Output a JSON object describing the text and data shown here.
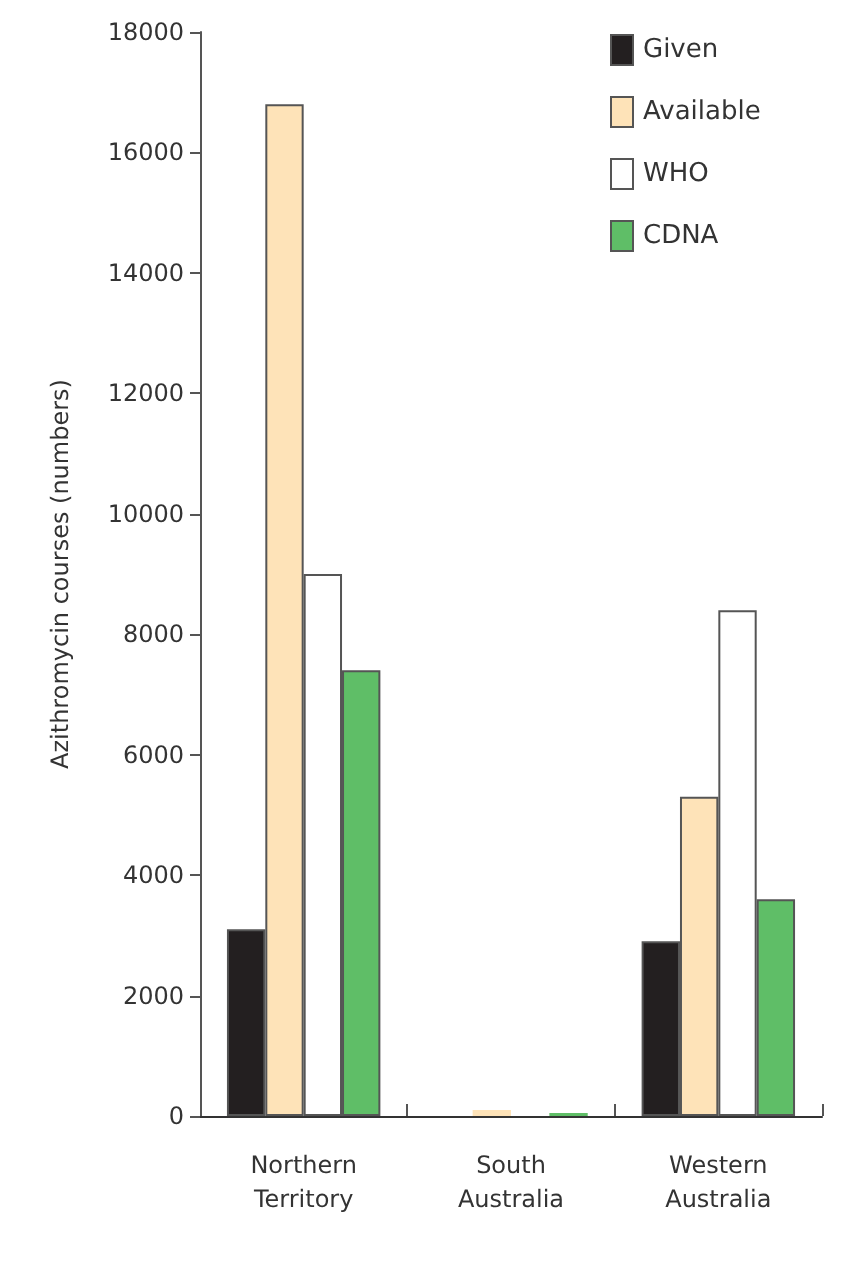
{
  "chart_data": {
    "type": "bar",
    "ylabel": "Azithromycin courses (numbers)",
    "categories": [
      "Northern\nTerritory",
      "South\nAustralia",
      "Western\nAustralia"
    ],
    "series": [
      {
        "name": "Given",
        "color": "#231f20",
        "values": [
          3100,
          null,
          2900
        ]
      },
      {
        "name": "Available",
        "color": "#fee3b8",
        "values": [
          16800,
          100,
          5300
        ]
      },
      {
        "name": "WHO",
        "color": "#ffffff",
        "values": [
          9000,
          null,
          8400
        ]
      },
      {
        "name": "CDNA",
        "color": "#5fbe67",
        "values": [
          7400,
          50,
          3600
        ]
      }
    ],
    "ylim": [
      0,
      18000
    ],
    "yticks": [
      0,
      2000,
      4000,
      6000,
      8000,
      10000,
      12000,
      14000,
      16000,
      18000
    ],
    "grid": false,
    "legend": "top right"
  }
}
